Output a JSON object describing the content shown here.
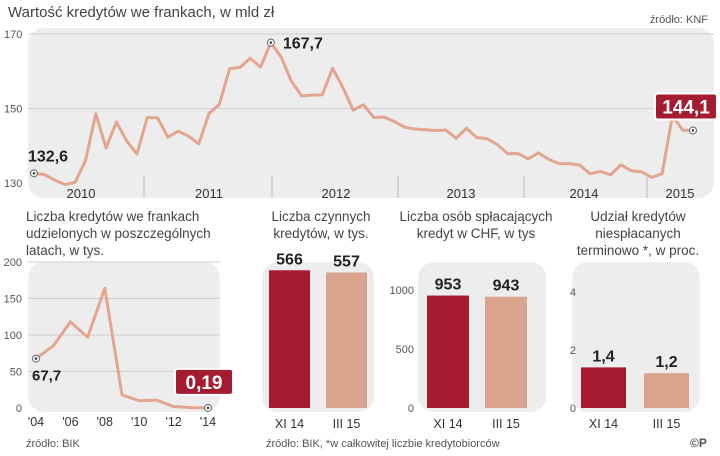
{
  "title": "Wartość kredytów we frankach, w mld zł",
  "source_top": "źródło: KNF",
  "footer_left": "źródło: BIK",
  "footer_right": "źródło: BIK, *w całkowitej liczbie kredytobiorców",
  "copyright": "©P",
  "colors": {
    "line": "#e4a58f",
    "dark": "#a51c30",
    "light": "#d9a38d",
    "panel": "#ededed"
  },
  "chart_data": [
    {
      "type": "line",
      "title": "Wartość kredytów we frankach, w mld zł",
      "ylim": [
        130,
        170
      ],
      "yticks": [
        130,
        150,
        170
      ],
      "xticks": [
        "2010",
        "2011",
        "2012",
        "2013",
        "2014",
        "2015"
      ],
      "series": [
        {
          "values": [
            132.6,
            132.3,
            130.8,
            129.6,
            130.2,
            136.0,
            148.6,
            139.4,
            146.4,
            141.3,
            137.8,
            147.6,
            147.5,
            142.3,
            143.9,
            142.6,
            140.5,
            148.7,
            151.1,
            160.7,
            161.0,
            163.5,
            161.1,
            167.7,
            163.8,
            157.3,
            153.4,
            153.6,
            153.7,
            160.8,
            155.6,
            149.6,
            151.0,
            147.6,
            147.7,
            146.5,
            145.0,
            144.5,
            144.3,
            144.1,
            144.2,
            142.0,
            144.7,
            142.2,
            141.9,
            140.3,
            137.9,
            137.9,
            136.5,
            138.1,
            136.3,
            135.2,
            135.2,
            134.8,
            132.5,
            133.1,
            132.2,
            134.9,
            133.3,
            133.0,
            131.5,
            132.5,
            148.0,
            144.2,
            144.1
          ]
        }
      ],
      "labels": {
        "start": "132,6",
        "peak": "167,7",
        "end": "144,1"
      }
    },
    {
      "type": "line",
      "title": "Liczba kredytów we frankach udzielonych w poszczególnych latach, w tys.",
      "ylim": [
        0,
        200
      ],
      "yticks": [
        0,
        50,
        100,
        150,
        200
      ],
      "xticks": [
        "'04",
        "'06",
        "'08",
        "'10",
        "'12",
        "'14"
      ],
      "x": [
        2004,
        2005,
        2006,
        2007,
        2008,
        2009,
        2010,
        2011,
        2012,
        2013,
        2014
      ],
      "values": [
        67.7,
        85,
        118,
        97,
        164,
        18,
        10,
        11,
        2,
        0.5,
        0.19
      ],
      "labels": {
        "start": "67,7",
        "end": "0,19"
      }
    },
    {
      "type": "bar",
      "title": "Liczba czynnych kredytów, w tys.",
      "categories": [
        "XI 14",
        "III 15"
      ],
      "values": [
        566,
        557
      ],
      "value_labels": [
        "566",
        "557"
      ]
    },
    {
      "type": "bar",
      "title": "Liczba osób spłacających kredyt w CHF, w tys",
      "categories": [
        "XI 14",
        "III 15"
      ],
      "values": [
        953,
        943
      ],
      "value_labels": [
        "953",
        "943"
      ],
      "ylim": [
        0,
        1000
      ],
      "yticks": [
        0,
        500,
        1000
      ]
    },
    {
      "type": "bar",
      "title": "Udział kredytów niespłacanych terminowo *, w proc.",
      "categories": [
        "XI 14",
        "III 15"
      ],
      "values": [
        1.4,
        1.2
      ],
      "value_labels": [
        "1,4",
        "1,2"
      ],
      "ylim": [
        0,
        4
      ],
      "yticks": [
        0,
        2,
        4
      ]
    }
  ]
}
